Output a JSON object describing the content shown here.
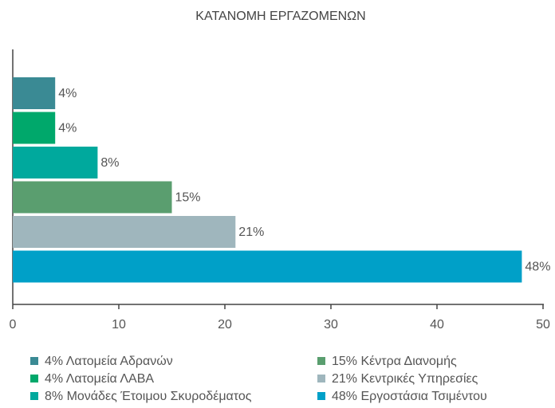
{
  "chart_data": {
    "type": "hbar",
    "title": "ΚΑΤΑΝΟΜΗ ΕΡΓΑΖΟΜΕΝΩΝ",
    "categories": [
      "4% Λατομεία Αδρανών",
      "4% Λατομεία ΛΑΒΑ",
      "8% Μονάδες Έτοιμου Σκυροδέματος",
      "15% Κέντρα Διανομής",
      "21% Κεντρικές Υπηρεσίες",
      "48% Εργοστάσια Τσιμέντου"
    ],
    "values": [
      4,
      4,
      8,
      15,
      21,
      48
    ],
    "value_labels": [
      "4%",
      "4%",
      "8%",
      "15%",
      "21%",
      "48%"
    ],
    "colors": [
      "#3a8a94",
      "#00a86b",
      "#00a99d",
      "#5a9e6f",
      "#9fb6bd",
      "#00a0c8"
    ],
    "xlim": [
      0,
      50
    ],
    "xticks": [
      0,
      10,
      20,
      30,
      40,
      50
    ]
  }
}
